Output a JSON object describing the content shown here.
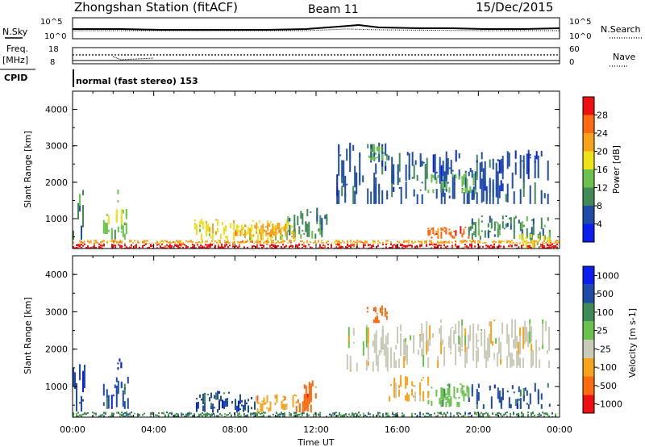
{
  "header": {
    "station": "Zhongshan Station (fitACF)",
    "beam": "Beam 11",
    "date": "15/Dec/2015"
  },
  "top_panels": {
    "nsky_label": "N.Sky",
    "nsky_ticks": [
      "10^5",
      "10^0"
    ],
    "nsearch_label": "N.Search",
    "nsearch_ticks": [
      "10^5",
      "10^0"
    ],
    "freq_label": "Freq.",
    "freq_unit": "[MHz]",
    "freq_ticks": [
      "18",
      "8"
    ],
    "nave_label": "Nave",
    "nave_ticks": [
      "60",
      "0"
    ],
    "cpid_label": "CPID",
    "cpid_value": "normal (fast stereo) 153"
  },
  "x_axis": {
    "label": "Time UT",
    "ticks": [
      "00:00",
      "04:00",
      "08:00",
      "12:00",
      "16:00",
      "20:00",
      "00:00"
    ]
  },
  "colors": {
    "power": [
      "#0a1ef0",
      "#1e4ca8",
      "#3f8a55",
      "#69c24c",
      "#f0e21a",
      "#f7a41c",
      "#ff6a10",
      "#ee1010"
    ],
    "velocity": [
      "#ee1010",
      "#ff6a10",
      "#f7a41c",
      "#cacab8",
      "#69c24c",
      "#3f8a55",
      "#1e4ca8",
      "#0a1ef0"
    ]
  },
  "chart_data": [
    {
      "type": "heatmap",
      "name": "power",
      "ylabel": "Slant Range [km]",
      "xlabel": "",
      "yticks": [
        "1000",
        "2000",
        "3000",
        "4000"
      ],
      "ylim": [
        180,
        4500
      ],
      "xlim_hours": [
        0,
        24
      ],
      "colorbar_label": "Power [dB]",
      "colorbar_ticks": [
        "4",
        "8",
        "12",
        "16",
        "20",
        "24",
        "28"
      ],
      "colorbar_range": [
        0,
        30
      ],
      "regions": [
        {
          "t0": 0.0,
          "t1": 24.0,
          "r0": 180,
          "r1": 320,
          "level": 29
        },
        {
          "t0": 0.0,
          "t1": 24.0,
          "r0": 320,
          "r1": 420,
          "level": 20
        },
        {
          "t0": 0.0,
          "t1": 0.5,
          "r0": 420,
          "r1": 1800,
          "level": 8
        },
        {
          "t0": 1.5,
          "t1": 2.7,
          "r0": 420,
          "r1": 1300,
          "level": 12
        },
        {
          "t0": 2.2,
          "t1": 2.4,
          "r0": 1450,
          "r1": 1800,
          "level": 14
        },
        {
          "t0": 6.0,
          "t1": 11.0,
          "r0": 400,
          "r1": 1000,
          "level": 16
        },
        {
          "t0": 8.0,
          "t1": 10.5,
          "r0": 500,
          "r1": 900,
          "level": 22
        },
        {
          "t0": 10.5,
          "t1": 12.5,
          "r0": 450,
          "r1": 1300,
          "level": 11
        },
        {
          "t0": 13.0,
          "t1": 16.0,
          "r0": 1400,
          "r1": 3100,
          "level": 7
        },
        {
          "t0": 14.5,
          "t1": 15.5,
          "r0": 2600,
          "r1": 3100,
          "level": 14
        },
        {
          "t0": 16.0,
          "t1": 23.5,
          "r0": 1400,
          "r1": 2900,
          "level": 7
        },
        {
          "t0": 17.5,
          "t1": 20.0,
          "r0": 1700,
          "r1": 2300,
          "level": 13
        },
        {
          "t0": 17.5,
          "t1": 19.5,
          "r0": 450,
          "r1": 800,
          "level": 25
        },
        {
          "t0": 19.5,
          "t1": 23.5,
          "r0": 420,
          "r1": 1100,
          "level": 9
        },
        {
          "t0": 22.0,
          "t1": 23.5,
          "r0": 180,
          "r1": 600,
          "level": 18
        }
      ]
    },
    {
      "type": "heatmap",
      "name": "velocity",
      "ylabel": "Slant Range [km]",
      "xlabel": "Time UT",
      "yticks": [
        "1000",
        "2000",
        "3000",
        "4000"
      ],
      "ylim": [
        180,
        4500
      ],
      "xlim_hours": [
        0,
        24
      ],
      "colorbar_label": "Velocity [m s-1]",
      "colorbar_ticks": [
        "1000",
        "500",
        "100",
        "25",
        "-25",
        "-100",
        "-500",
        "-1000"
      ],
      "regions": [
        {
          "t0": 0.0,
          "t1": 24.0,
          "r0": 180,
          "r1": 330,
          "level": 5
        },
        {
          "t0": 0.0,
          "t1": 0.6,
          "r0": 330,
          "r1": 1800,
          "level": 6
        },
        {
          "t0": 1.5,
          "t1": 2.7,
          "r0": 400,
          "r1": 1300,
          "level": 6
        },
        {
          "t0": 2.2,
          "t1": 2.4,
          "r0": 1450,
          "r1": 1800,
          "level": 7
        },
        {
          "t0": 6.0,
          "t1": 9.0,
          "r0": 300,
          "r1": 900,
          "level": 6
        },
        {
          "t0": 9.0,
          "t1": 11.0,
          "r0": 300,
          "r1": 800,
          "level": 2
        },
        {
          "t0": 11.0,
          "t1": 12.0,
          "r0": 300,
          "r1": 1300,
          "level": 1
        },
        {
          "t0": 13.5,
          "t1": 15.5,
          "r0": 1400,
          "r1": 2700,
          "level": 3
        },
        {
          "t0": 14.5,
          "t1": 15.5,
          "r0": 2700,
          "r1": 3200,
          "level": 1
        },
        {
          "t0": 15.5,
          "t1": 23.5,
          "r0": 1500,
          "r1": 2800,
          "level": 3
        },
        {
          "t0": 17.5,
          "t1": 19.5,
          "r0": 450,
          "r1": 1100,
          "level": 4
        },
        {
          "t0": 19.5,
          "t1": 23.5,
          "r0": 400,
          "r1": 1100,
          "level": 6
        },
        {
          "t0": 15.5,
          "t1": 17.5,
          "r0": 600,
          "r1": 1400,
          "level": 2
        }
      ]
    }
  ]
}
